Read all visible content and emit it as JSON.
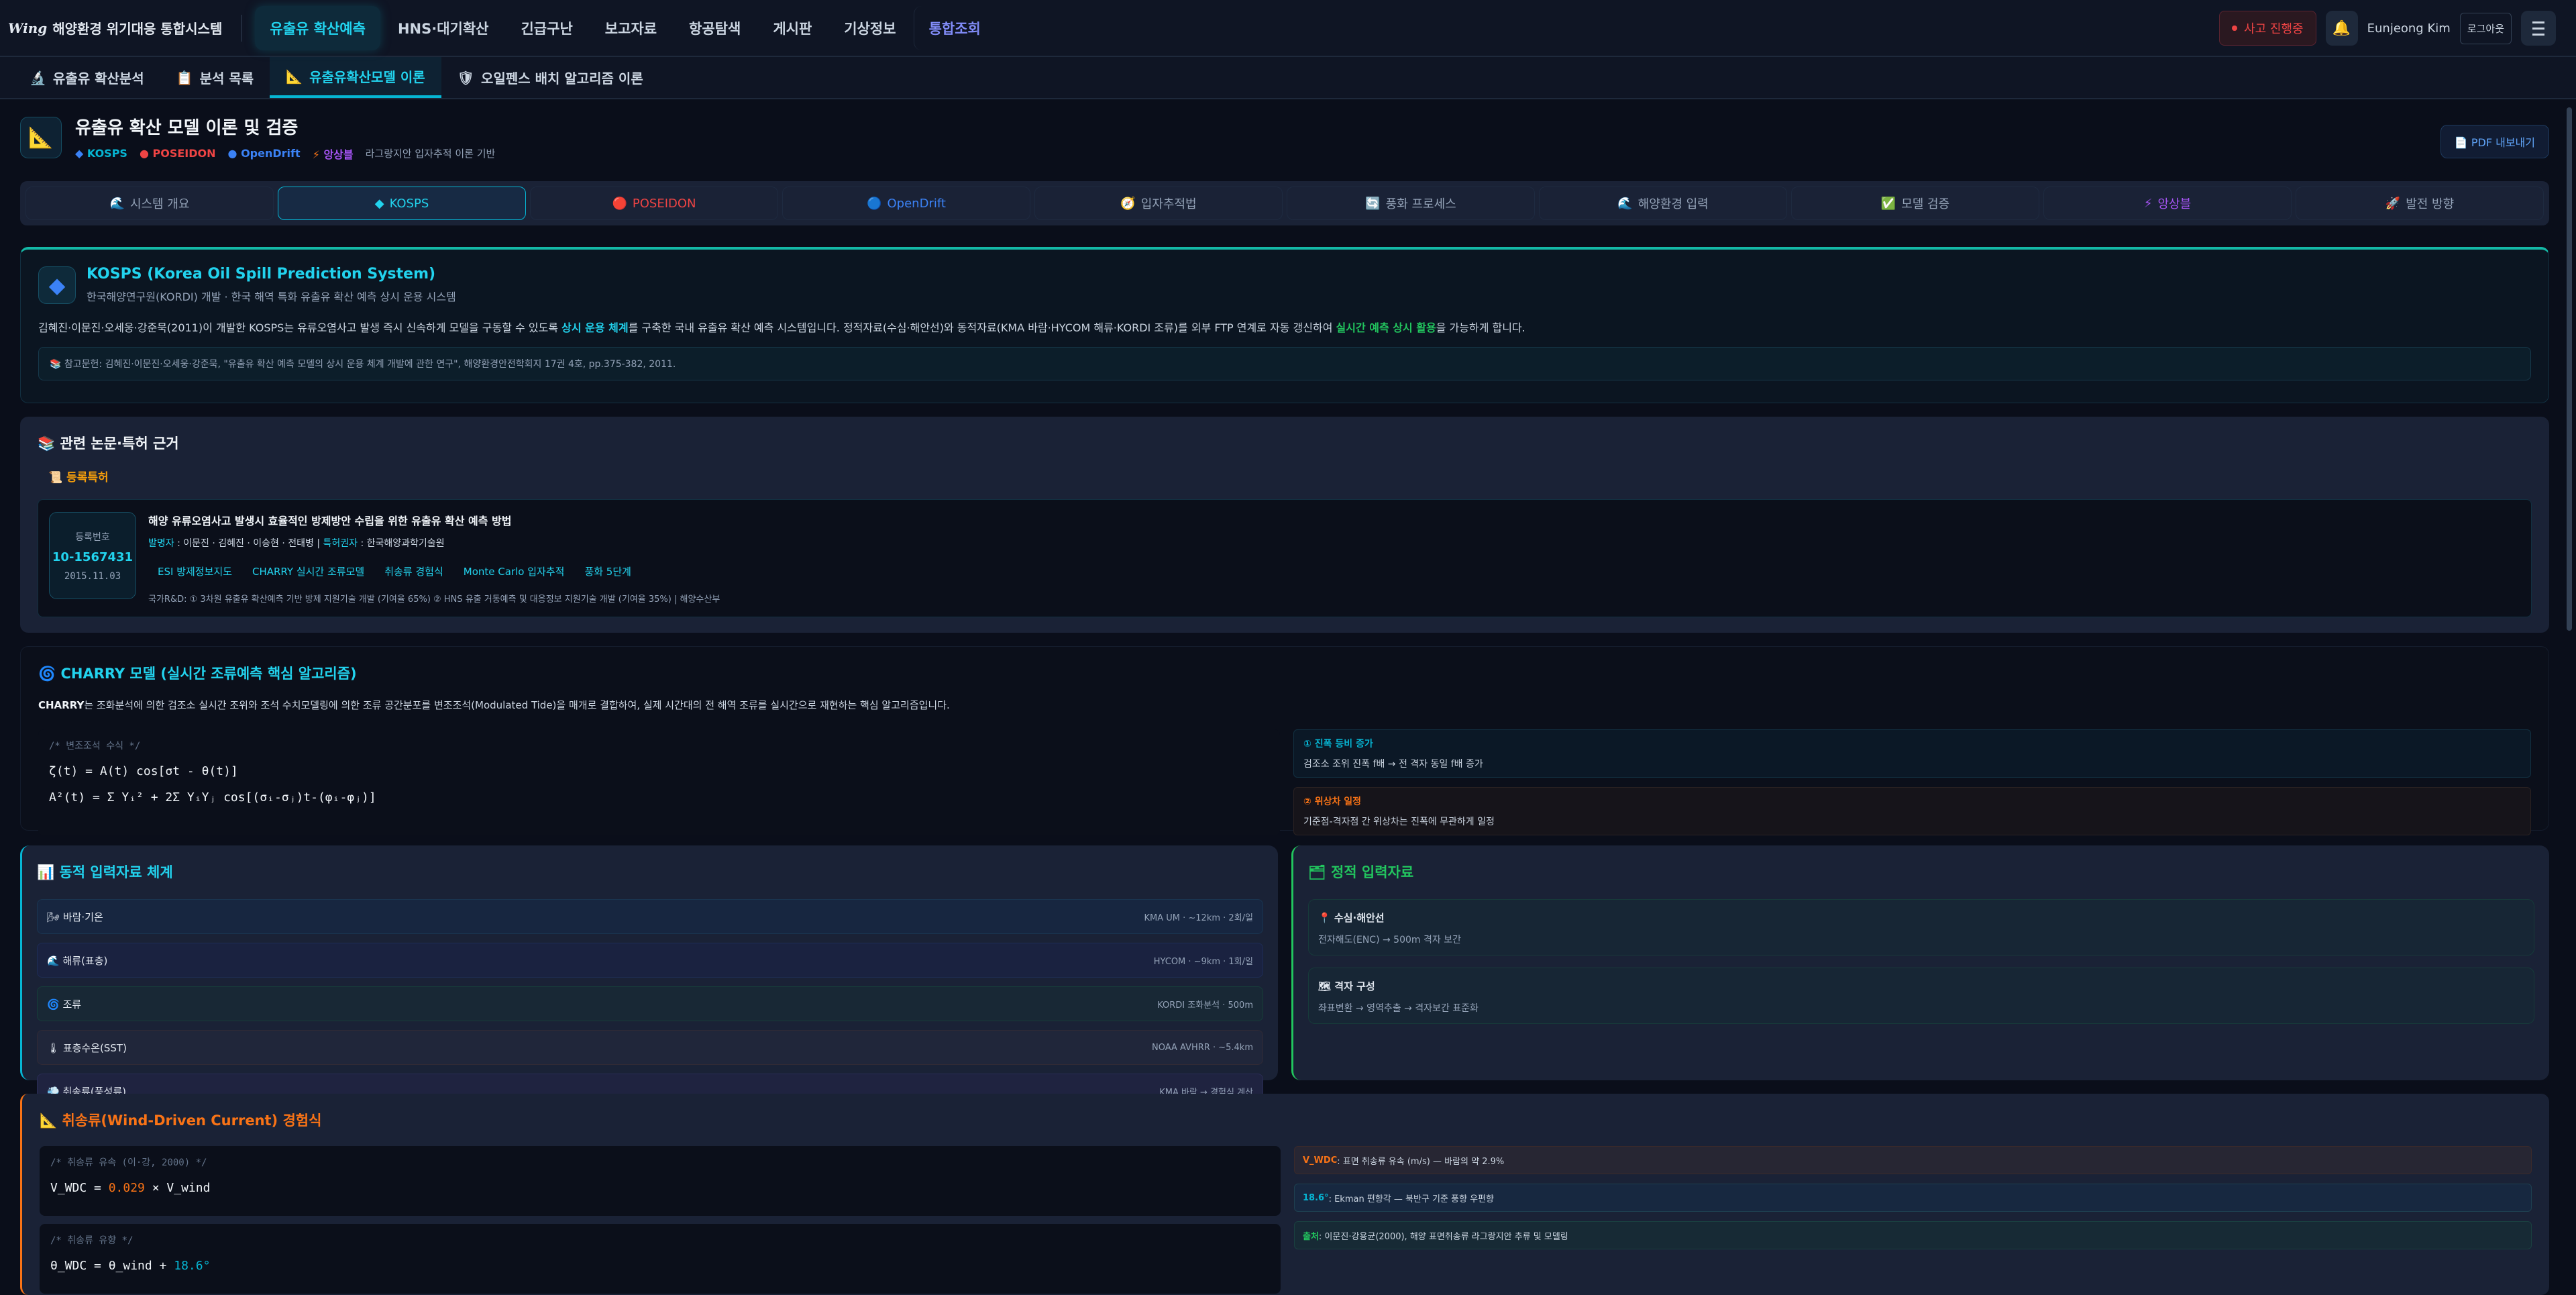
{
  "app": {
    "logo_mark": "Wing",
    "title": "해양환경 위기대응 통합시스템"
  },
  "menu": [
    "유출유 확산예측",
    "HNS·대기확산",
    "긴급구난",
    "보고자료",
    "항공탐색",
    "게시판",
    "기상정보",
    "통합조회"
  ],
  "header_right": {
    "incident": "사고 진행중",
    "user": "Eunjeong Kim",
    "logout": "로그아웃"
  },
  "subnav": [
    {
      "icon": "🔬",
      "label": "유출유 확산분석"
    },
    {
      "icon": "📋",
      "label": "분석 목록"
    },
    {
      "icon": "📐",
      "label": "유출유확산모델 이론"
    },
    {
      "icon": "🛡",
      "label": "오일펜스 배치 알고리즘 이론"
    }
  ],
  "page": {
    "title": "유출유 확산 모델 이론 및 검증",
    "badges": [
      {
        "icon": "◆",
        "label": "KOSPS",
        "color": "#06b6d4"
      },
      {
        "icon": "●",
        "label": "POSEIDON",
        "color": "#ef4444"
      },
      {
        "icon": "●",
        "label": "OpenDrift",
        "color": "#3b82f6"
      },
      {
        "icon": "⚡",
        "label": "앙상블",
        "color": "#a855f7"
      }
    ],
    "subtitle": "라그랑지안 입자추적 이론 기반",
    "pdf": "PDF 내보내기"
  },
  "tabs": [
    {
      "icon": "🌊",
      "label": "시스템 개요"
    },
    {
      "icon": "◆",
      "label": "KOSPS"
    },
    {
      "icon": "🔴",
      "label": "POSEIDON"
    },
    {
      "icon": "🔵",
      "label": "OpenDrift"
    },
    {
      "icon": "🧭",
      "label": "입자추적법"
    },
    {
      "icon": "🔄",
      "label": "풍화 프로세스"
    },
    {
      "icon": "🌊",
      "label": "해양환경 입력"
    },
    {
      "icon": "✅",
      "label": "모델 검증"
    },
    {
      "icon": "⚡",
      "label": "앙상블"
    },
    {
      "icon": "🚀",
      "label": "발전 방향"
    }
  ],
  "kosps": {
    "title": "KOSPS (Korea Oil Spill Prediction System)",
    "subtitle": "한국해양연구원(KORDI) 개발 · 한국 해역 특화 유출유 확산 예측 상시 운용 시스템",
    "p1": "김혜진·이문진·오세웅·강준묵(2011)이 개발한 KOSPS는 유류오염사고 발생 즉시 신속하게 모델을 구동할 수 있도록 ",
    "h1": "상시 운용 체계",
    "p2": "를 구축한 국내 유출유 확산 예측 시스템입니다. 정적자료(수심·해안선)와 동적자료(KMA 바람·HYCOM 해류·KORDI 조류)를 외부 FTP 연계로 자동 갱신하여 ",
    "h2": "실시간 예측 상시 활용",
    "p3": "을 가능하게 합니다.",
    "ref": "📚 참고문헌: 김혜진·이문진·오세웅·강준묵, \"유출유 확산 예측 모델의 상시 운용 체계 개발에 관한 연구\", 해양환경안전학회지 17권 4호, pp.375-382, 2011."
  },
  "papers": {
    "title": "📚 관련 논문·특허 근거",
    "patent_label": "📜 등록특허",
    "reg_label": "등록번호",
    "reg_no": "10-1567431",
    "reg_date": "2015.11.03",
    "patent_title": "해양 유류오염사고 발생시 효율적인 방제방안 수립을 위한 유출유 확산 예측 방법",
    "inventor_label": "발명자",
    "inventors": " : 이문진 · 김혜진 · 이승현 · 전태병 | ",
    "holder_label": "특허권자",
    "holder": " : 한국해양과학기술원",
    "tags": [
      "ESI 방제정보지도",
      "CHARRY 실시간 조류모델",
      "취송류 경험식",
      "Monte Carlo 입자추적",
      "풍화 5단계"
    ],
    "rnd": "국가R&D: ① 3차원 유출유 확산예측 기반 방제 지원기술 개발 (기여율 65%) ② HNS 유출 거동예측 및 대응정보 지원기술 개발 (기여율 35%) | 해양수산부"
  },
  "charry": {
    "title": "🌀 CHARRY 모델 (실시간 조류예측 핵심 알고리즘)",
    "lead": "CHARRY",
    "desc": "는 조화분석에 의한 검조소 실시간 조위와 조석 수치모델링에 의한 조류 공간분포를 변조조석(Modulated Tide)을 매개로 결합하여, 실제 시간대의 전 해역 조류를 실시간으로 재현하는 핵심 알고리즘입니다.",
    "comment": "/* 변조조석 수식 */",
    "eq1": "ζ(t) = A(t) cos[σt - θ(t)]",
    "eq2": "A²(t) = Σ Yᵢ² + 2Σ YᵢYⱼ cos[(σᵢ-σⱼ)t-(φᵢ-φⱼ)]",
    "notes": [
      {
        "title": "① 진폭 등비 증가",
        "body": "검조소 조위 진폭 f배 → 전 격자 동일 f배 증가"
      },
      {
        "title": "② 위상차 일정",
        "body": "기준점-격자점 간 위상차는 진폭에 무관하게 일정"
      }
    ]
  },
  "dynamic": {
    "title": "📊 동적 입력자료 체계",
    "rows": [
      {
        "icon": "🌬",
        "label": "바람·기온",
        "value": "KMA UM · ~12km · 2회/일"
      },
      {
        "icon": "🌊",
        "label": "해류(표층)",
        "value": "HYCOM · ~9km · 1회/일"
      },
      {
        "icon": "🌀",
        "label": "조류",
        "value": "KORDI 조화분석 · 500m"
      },
      {
        "icon": "🌡",
        "label": "표층수온(SST)",
        "value": "NOAA AVHRR · ~5.4km"
      },
      {
        "icon": "💨",
        "label": "취송류(풍성류)",
        "value": "KMA 바람 → 경험식 계산"
      }
    ]
  },
  "static": {
    "title": "🗂 정적 입력자료",
    "items": [
      {
        "title": "📍 수심·해안선",
        "body": "전자해도(ENC) → 500m 격자 보간"
      },
      {
        "title": "🗺 격자 구성",
        "body": "좌표변환 → 영역추출 → 격자보간 표준화"
      }
    ]
  },
  "wind": {
    "title": "📐 취송류(Wind-Driven Current) 경험식",
    "codes": [
      {
        "comment": "/* 취송류 유속 (이·강, 2000) */",
        "pre": "V_WDC = ",
        "num": "0.029",
        "post": " × V_wind",
        "numcolor": "#f97316"
      },
      {
        "comment": "/* 취송류 유향 */",
        "pre": "θ_WDC = θ_wind + ",
        "num": "18.6°",
        "post": "",
        "numcolor": "#06b6d4"
      }
    ],
    "notes": [
      {
        "key": "V_WDC",
        "text": " : 표면 취송류 유속 (m/s) — 바람의 약 2.9%",
        "color": "#f97316"
      },
      {
        "key": "18.6°",
        "text": " : Ekman 편향각 — 북반구 기준 풍향 우편향",
        "color": "#06b6d4"
      },
      {
        "key": "출처",
        "text": " : 이문진·강용균(2000), 해양 표면취송류 라그랑지안 추류 및 모델링",
        "color": "#22c55e"
      }
    ]
  }
}
